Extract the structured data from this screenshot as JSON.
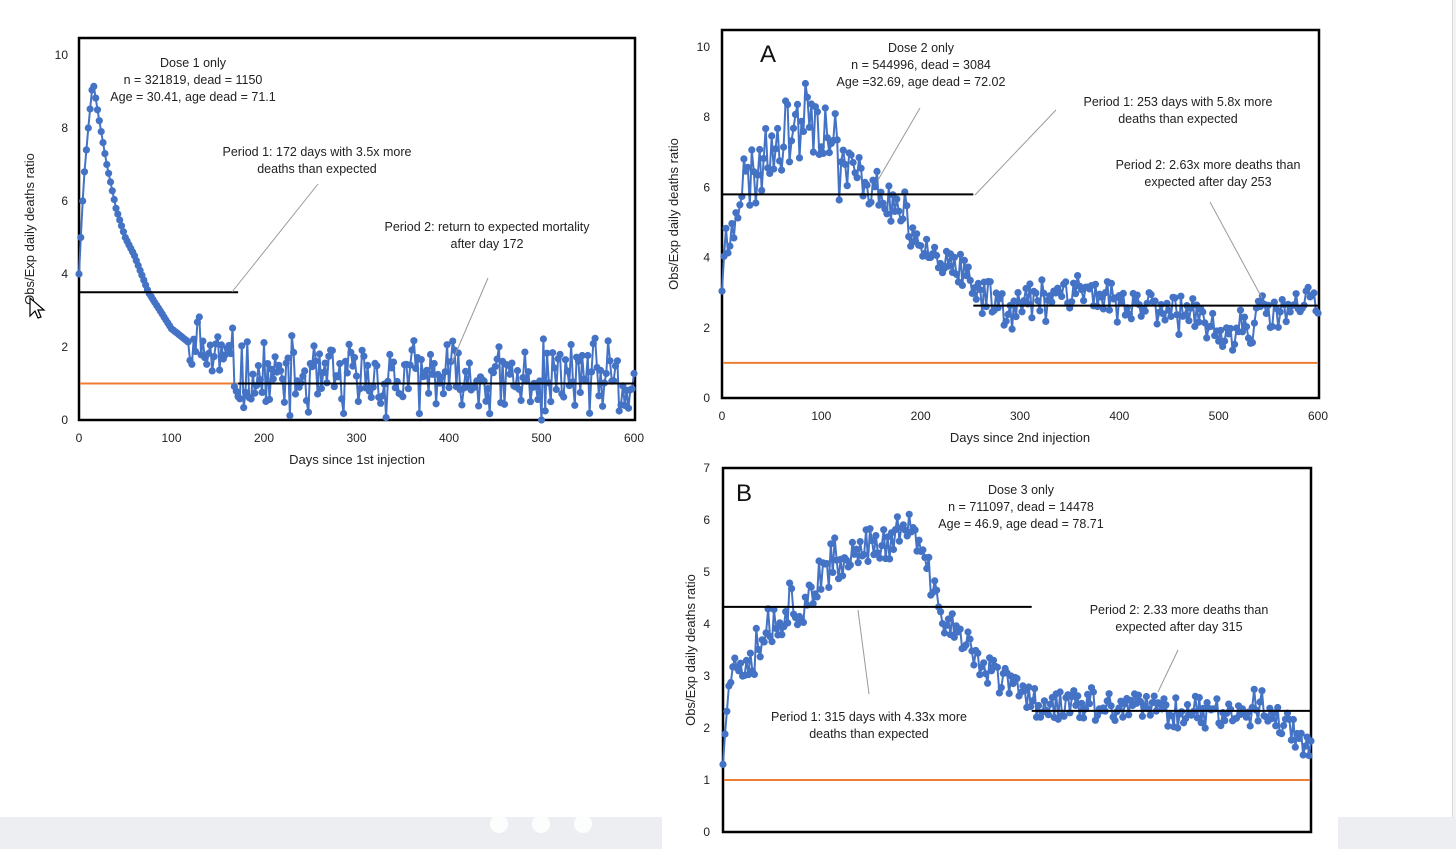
{
  "colors": {
    "series": "#4472c4",
    "period_line": "#000000",
    "expected_line": "#ed7d31",
    "text": "#222222"
  },
  "chart_data": [
    {
      "id": "dose1",
      "type": "line",
      "title": "",
      "ylabel": "Obs/Exp daily deaths ratio",
      "xlabel": "Days since 1st injection",
      "xlim": [
        0,
        600
      ],
      "ylim": [
        0,
        10
      ],
      "xticks": [
        0,
        100,
        200,
        300,
        400,
        500,
        600
      ],
      "yticks": [
        0,
        2,
        4,
        6,
        8,
        10
      ],
      "expected_line": 1,
      "period_lines": [
        {
          "x0": 0,
          "x1": 172,
          "y": 3.5
        },
        {
          "x0": 172,
          "x1": 600,
          "y": 1.0
        }
      ],
      "annotations": [
        {
          "lines": [
            "Dose 1 only",
            "n = 321819, dead = 1150",
            "Age = 30.41, age dead = 71.1"
          ]
        },
        {
          "lines": [
            "Period 1: 172 days with 3.5x more",
            "deaths than expected"
          ]
        },
        {
          "lines": [
            "Period 2: return to expected mortality",
            "after day 172"
          ]
        }
      ],
      "series_anchors": [
        [
          0,
          4.0
        ],
        [
          5,
          6.5
        ],
        [
          10,
          8.0
        ],
        [
          15,
          9.3
        ],
        [
          20,
          8.5
        ],
        [
          30,
          7.0
        ],
        [
          40,
          5.8
        ],
        [
          50,
          5.0
        ],
        [
          60,
          4.5
        ],
        [
          75,
          3.5
        ],
        [
          100,
          2.5
        ],
        [
          125,
          2.0
        ],
        [
          150,
          1.7
        ],
        [
          172,
          1.3
        ],
        [
          200,
          1.1
        ],
        [
          300,
          1.1
        ],
        [
          400,
          1.1
        ],
        [
          500,
          1.0
        ],
        [
          540,
          1.3
        ],
        [
          600,
          0.8
        ]
      ],
      "series_noise": [
        0.0,
        2.2,
        0.9,
        0.9
      ],
      "series_clip": [
        0,
        10
      ],
      "seed": 11
    },
    {
      "id": "dose2",
      "type": "line",
      "panel_label": "A",
      "ylabel": "Obs/Exp daily deaths ratio",
      "xlabel": "Days since 2nd injection",
      "xlim": [
        0,
        600
      ],
      "ylim": [
        0,
        10
      ],
      "xticks": [
        0,
        100,
        200,
        300,
        400,
        500,
        600
      ],
      "yticks": [
        0,
        2,
        4,
        6,
        8,
        10
      ],
      "expected_line": 1,
      "period_lines": [
        {
          "x0": 0,
          "x1": 253,
          "y": 5.8
        },
        {
          "x0": 253,
          "x1": 600,
          "y": 2.63
        }
      ],
      "annotations": [
        {
          "lines": [
            "Dose 2 only",
            "n = 544996, dead = 3084",
            "Age =32.69, age dead = 72.02"
          ]
        },
        {
          "lines": [
            "Period 1: 253 days with 5.8x more",
            "deaths than expected"
          ]
        },
        {
          "lines": [
            "Period 2: 2.63x more deaths than",
            "expected after day 253"
          ]
        }
      ],
      "series_anchors": [
        [
          0,
          3.5
        ],
        [
          10,
          5.5
        ],
        [
          30,
          6.3
        ],
        [
          50,
          7.3
        ],
        [
          70,
          7.8
        ],
        [
          90,
          8.3
        ],
        [
          100,
          8.0
        ],
        [
          120,
          6.8
        ],
        [
          150,
          6.0
        ],
        [
          180,
          5.3
        ],
        [
          200,
          4.5
        ],
        [
          230,
          3.8
        ],
        [
          253,
          3.0
        ],
        [
          300,
          2.6
        ],
        [
          350,
          3.2
        ],
        [
          400,
          2.7
        ],
        [
          450,
          2.7
        ],
        [
          500,
          1.7
        ],
        [
          540,
          2.3
        ],
        [
          600,
          2.7
        ]
      ],
      "series_noise": [
        1.0,
        1.0,
        0.55,
        0.55
      ],
      "series_clip": [
        1.0,
        10.2
      ],
      "seed": 23
    },
    {
      "id": "dose3",
      "type": "line",
      "panel_label": "B",
      "ylabel": "Obs/Exp daily deaths ratio",
      "xlabel": "",
      "xlim": [
        0,
        600
      ],
      "ylim": [
        0,
        7
      ],
      "yticks": [
        0,
        1,
        2,
        3,
        4,
        5,
        6,
        7
      ],
      "expected_line": 1,
      "period_lines": [
        {
          "x0": 0,
          "x1": 315,
          "y": 4.33
        },
        {
          "x0": 315,
          "x1": 600,
          "y": 2.33
        }
      ],
      "annotations": [
        {
          "lines": [
            "Dose 3 only",
            "n = 711097, dead = 14478",
            "Age = 46.9, age dead = 78.71"
          ]
        },
        {
          "lines": [
            "Period 2: 2.33 more deaths than",
            "expected after day 315"
          ]
        },
        {
          "lines": [
            "Period 1: 315 days with 4.33x more",
            "deaths than expected"
          ]
        }
      ],
      "series_anchors": [
        [
          0,
          1.5
        ],
        [
          5,
          3.0
        ],
        [
          30,
          3.6
        ],
        [
          60,
          4.2
        ],
        [
          100,
          4.8
        ],
        [
          130,
          5.3
        ],
        [
          150,
          5.6
        ],
        [
          170,
          5.5
        ],
        [
          180,
          5.8
        ],
        [
          190,
          5.9
        ],
        [
          200,
          5.5
        ],
        [
          220,
          4.3
        ],
        [
          240,
          3.8
        ],
        [
          260,
          3.3
        ],
        [
          280,
          3.0
        ],
        [
          300,
          2.8
        ],
        [
          315,
          2.5
        ],
        [
          400,
          2.4
        ],
        [
          500,
          2.3
        ],
        [
          550,
          2.4
        ],
        [
          600,
          1.7
        ]
      ],
      "series_noise": [
        0.5,
        0.5,
        0.3,
        0.3
      ],
      "series_clip": [
        1.3,
        7.0
      ],
      "seed": 37
    }
  ]
}
